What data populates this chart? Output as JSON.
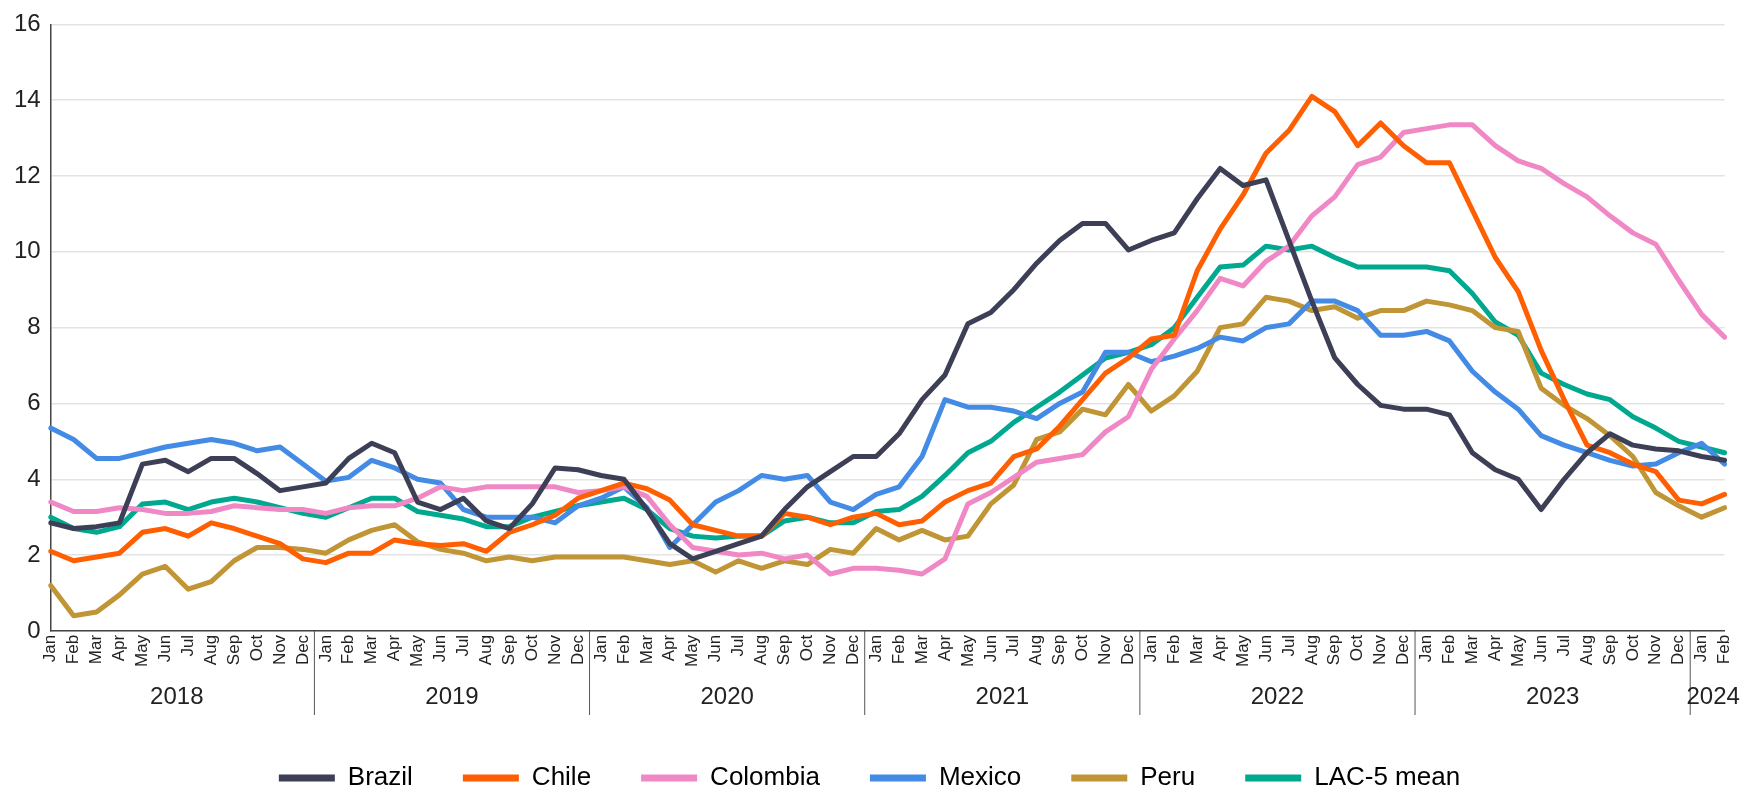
{
  "chart_data": {
    "type": "line",
    "categories": [
      "Jan",
      "Feb",
      "Mar",
      "Apr",
      "May",
      "Jun",
      "Jul",
      "Aug",
      "Sep",
      "Oct",
      "Nov",
      "Dec",
      "Jan",
      "Feb",
      "Mar",
      "Apr",
      "May",
      "Jun",
      "Jul",
      "Aug",
      "Sep",
      "Oct",
      "Nov",
      "Dec",
      "Jan",
      "Feb",
      "Mar",
      "Apr",
      "May",
      "Jun",
      "Jul",
      "Aug",
      "Sep",
      "Oct",
      "Nov",
      "Dec",
      "Jan",
      "Feb",
      "Mar",
      "Apr",
      "May",
      "Jun",
      "Jul",
      "Aug",
      "Sep",
      "Oct",
      "Nov",
      "Dec",
      "Jan",
      "Feb",
      "Mar",
      "Apr",
      "May",
      "Jun",
      "Jul",
      "Aug",
      "Sep",
      "Oct",
      "Nov",
      "Dec",
      "Jan",
      "Feb",
      "Mar",
      "Apr",
      "May",
      "Jun",
      "Jul",
      "Aug",
      "Sep",
      "Oct",
      "Nov",
      "Dec",
      "Jan",
      "Feb"
    ],
    "annotations": [
      "2018",
      "2019",
      "2020",
      "2021",
      "2022",
      "2023",
      "2024"
    ],
    "series": [
      {
        "name": "Brazil",
        "color": "#3c3f56",
        "values": [
          2.85,
          2.7,
          2.75,
          2.85,
          4.4,
          4.5,
          4.2,
          4.55,
          4.55,
          4.15,
          3.7,
          3.8,
          3.9,
          4.55,
          4.95,
          4.7,
          3.4,
          3.2,
          3.5,
          2.9,
          2.7,
          3.35,
          4.3,
          4.25,
          4.1,
          4.0,
          3.2,
          2.3,
          1.9,
          2.1,
          2.3,
          2.5,
          3.2,
          3.8,
          4.2,
          4.6,
          4.6,
          5.2,
          6.1,
          6.75,
          8.1,
          8.4,
          9.0,
          9.7,
          10.3,
          10.75,
          10.75,
          10.05,
          10.3,
          10.5,
          11.4,
          12.2,
          11.75,
          11.9,
          10.3,
          8.7,
          7.2,
          6.5,
          5.95,
          5.85,
          5.85,
          5.7,
          4.7,
          4.25,
          4.0,
          3.2,
          4.0,
          4.7,
          5.2,
          4.9,
          4.8,
          4.75,
          4.6,
          4.5
        ]
      },
      {
        "name": "Chile",
        "color": "#ff5f00",
        "values": [
          2.1,
          1.85,
          1.95,
          2.05,
          2.6,
          2.7,
          2.5,
          2.85,
          2.7,
          2.5,
          2.3,
          1.9,
          1.8,
          2.05,
          2.05,
          2.4,
          2.3,
          2.25,
          2.3,
          2.1,
          2.6,
          2.8,
          3.05,
          3.5,
          3.7,
          3.9,
          3.75,
          3.45,
          2.8,
          2.65,
          2.5,
          2.5,
          3.1,
          3.0,
          2.8,
          3.0,
          3.1,
          2.8,
          2.9,
          3.4,
          3.7,
          3.9,
          4.6,
          4.8,
          5.4,
          6.1,
          6.8,
          7.2,
          7.7,
          7.8,
          9.5,
          10.6,
          11.5,
          12.6,
          13.2,
          14.1,
          13.7,
          12.8,
          13.4,
          12.8,
          12.35,
          12.35,
          11.1,
          9.85,
          8.95,
          7.4,
          6.1,
          4.9,
          4.7,
          4.4,
          4.2,
          3.45,
          3.35,
          3.6
        ]
      },
      {
        "name": "Colombia",
        "color": "#f088c6",
        "values": [
          3.4,
          3.15,
          3.15,
          3.25,
          3.2,
          3.1,
          3.1,
          3.15,
          3.3,
          3.25,
          3.2,
          3.2,
          3.1,
          3.25,
          3.3,
          3.3,
          3.5,
          3.8,
          3.7,
          3.8,
          3.8,
          3.8,
          3.8,
          3.65,
          3.7,
          3.8,
          3.55,
          2.8,
          2.2,
          2.1,
          2.0,
          2.05,
          1.9,
          2.0,
          1.5,
          1.65,
          1.65,
          1.6,
          1.5,
          1.9,
          3.35,
          3.65,
          4.05,
          4.45,
          4.55,
          4.65,
          5.25,
          5.65,
          6.9,
          7.7,
          8.45,
          9.3,
          9.1,
          9.75,
          10.15,
          10.95,
          11.45,
          12.3,
          12.5,
          13.15,
          13.25,
          13.35,
          13.35,
          12.8,
          12.4,
          12.2,
          11.8,
          11.45,
          10.95,
          10.5,
          10.2,
          9.25,
          8.35,
          7.75
        ]
      },
      {
        "name": "Mexico",
        "color": "#438be4",
        "values": [
          5.35,
          5.05,
          4.55,
          4.55,
          4.7,
          4.85,
          4.95,
          5.05,
          4.95,
          4.75,
          4.85,
          4.4,
          3.95,
          4.05,
          4.5,
          4.3,
          4.0,
          3.9,
          3.2,
          3.0,
          3.0,
          3.0,
          2.85,
          3.3,
          3.5,
          3.8,
          3.25,
          2.2,
          2.8,
          3.4,
          3.7,
          4.1,
          4.0,
          4.1,
          3.4,
          3.2,
          3.6,
          3.8,
          4.6,
          6.1,
          5.9,
          5.9,
          5.8,
          5.6,
          6.0,
          6.3,
          7.35,
          7.35,
          7.1,
          7.25,
          7.45,
          7.75,
          7.65,
          8.0,
          8.1,
          8.7,
          8.7,
          8.45,
          7.8,
          7.8,
          7.9,
          7.65,
          6.85,
          6.3,
          5.85,
          5.15,
          4.9,
          4.7,
          4.5,
          4.35,
          4.4,
          4.7,
          4.95,
          4.4
        ]
      },
      {
        "name": "Peru",
        "color": "#c09535",
        "values": [
          1.2,
          0.4,
          0.5,
          0.95,
          1.5,
          1.7,
          1.1,
          1.3,
          1.85,
          2.2,
          2.2,
          2.15,
          2.05,
          2.4,
          2.65,
          2.8,
          2.35,
          2.15,
          2.05,
          1.85,
          1.95,
          1.85,
          1.95,
          1.95,
          1.95,
          1.95,
          1.85,
          1.75,
          1.85,
          1.55,
          1.85,
          1.65,
          1.85,
          1.75,
          2.15,
          2.05,
          2.7,
          2.4,
          2.65,
          2.4,
          2.5,
          3.35,
          3.85,
          5.05,
          5.25,
          5.85,
          5.7,
          6.5,
          5.8,
          6.2,
          6.85,
          8.0,
          8.1,
          8.8,
          8.7,
          8.45,
          8.55,
          8.25,
          8.45,
          8.45,
          8.7,
          8.6,
          8.45,
          8.0,
          7.9,
          6.4,
          5.95,
          5.6,
          5.15,
          4.6,
          3.65,
          3.3,
          3.0,
          3.25
        ]
      },
      {
        "name": "LAC-5 mean",
        "color": "#00a890",
        "values": [
          3.0,
          2.7,
          2.6,
          2.75,
          3.35,
          3.4,
          3.2,
          3.4,
          3.5,
          3.4,
          3.25,
          3.1,
          3.0,
          3.25,
          3.5,
          3.5,
          3.15,
          3.05,
          2.95,
          2.75,
          2.75,
          3.0,
          3.15,
          3.3,
          3.4,
          3.5,
          3.2,
          2.7,
          2.5,
          2.45,
          2.5,
          2.5,
          2.9,
          3.0,
          2.85,
          2.85,
          3.15,
          3.2,
          3.55,
          4.1,
          4.7,
          5.0,
          5.5,
          5.9,
          6.3,
          6.75,
          7.2,
          7.35,
          7.55,
          8.0,
          8.8,
          9.6,
          9.65,
          10.15,
          10.05,
          10.15,
          9.85,
          9.6,
          9.6,
          9.6,
          9.6,
          9.5,
          8.9,
          8.15,
          7.8,
          6.8,
          6.5,
          6.25,
          6.1,
          5.65,
          5.35,
          5.0,
          4.85,
          4.7
        ]
      }
    ],
    "ylim": [
      0,
      16
    ],
    "yticks": [
      0,
      2,
      4,
      6,
      8,
      10,
      12,
      14,
      16
    ],
    "grid": "y",
    "legend": "bottom",
    "marker": "none",
    "line_style": "solid"
  }
}
